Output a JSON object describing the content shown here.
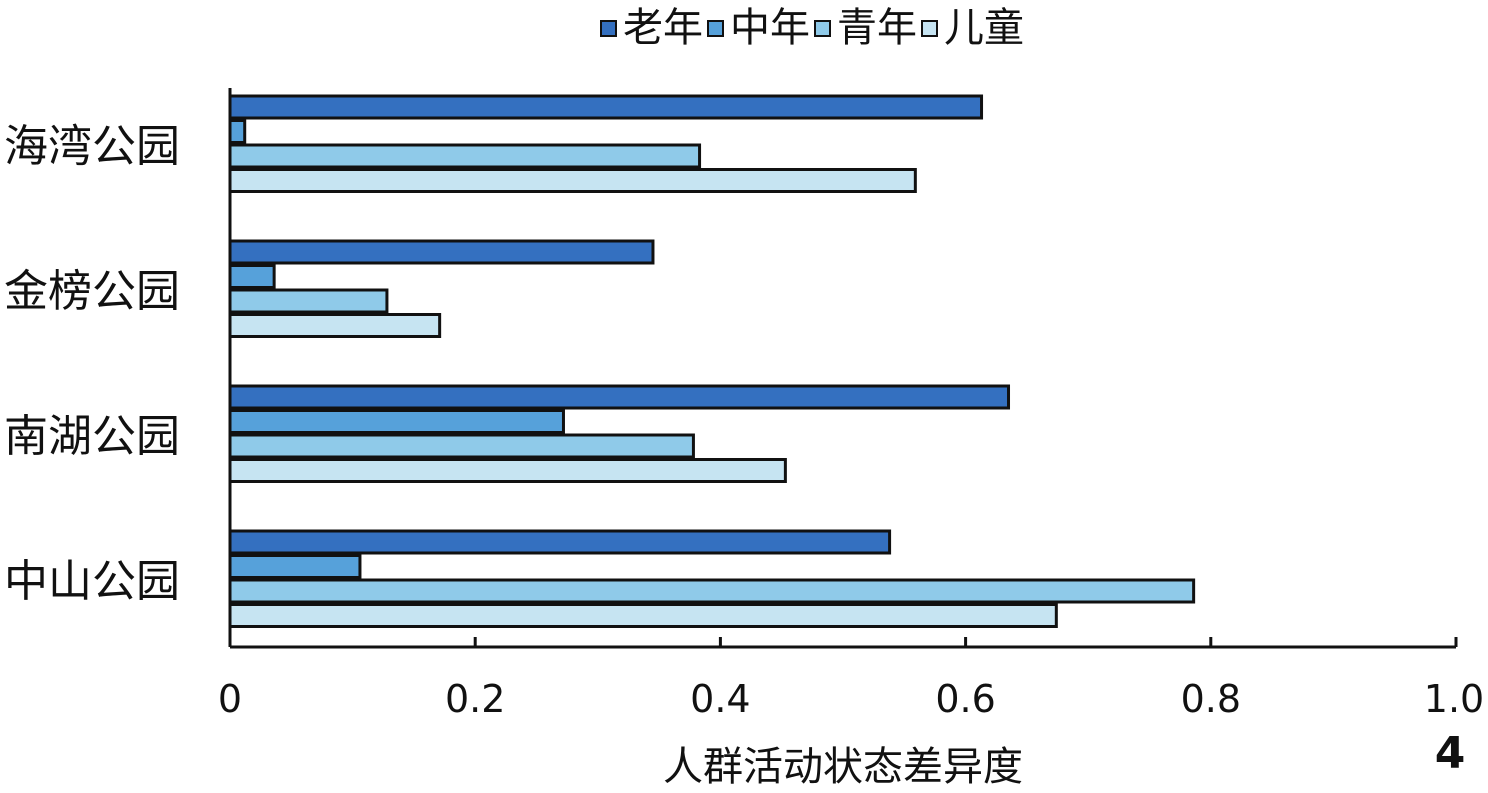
{
  "chart_data": {
    "type": "bar",
    "orientation": "horizontal",
    "categories": [
      "海湾公园",
      "金榜公园",
      "南湖公园",
      "中山公园"
    ],
    "series": [
      {
        "name": "老年",
        "color": "#3470c0",
        "values": [
          0.613,
          0.345,
          0.635,
          0.538
        ]
      },
      {
        "name": "中年",
        "color": "#56a1da",
        "values": [
          0.012,
          0.036,
          0.272,
          0.106
        ]
      },
      {
        "name": "青年",
        "color": "#8fcae9",
        "values": [
          0.383,
          0.128,
          0.378,
          0.786
        ]
      },
      {
        "name": "儿童",
        "color": "#c6e4f2",
        "values": [
          0.559,
          0.171,
          0.453,
          0.674
        ]
      }
    ],
    "xlabel": "人群活动状态差异度",
    "ylabel": "",
    "xlim": [
      0,
      1.0
    ],
    "xticks": [
      "0",
      "0.2",
      "0.4",
      "0.6",
      "0.8",
      "1.0"
    ],
    "legend_position": "top",
    "grid": false
  },
  "corner_mark": "4"
}
